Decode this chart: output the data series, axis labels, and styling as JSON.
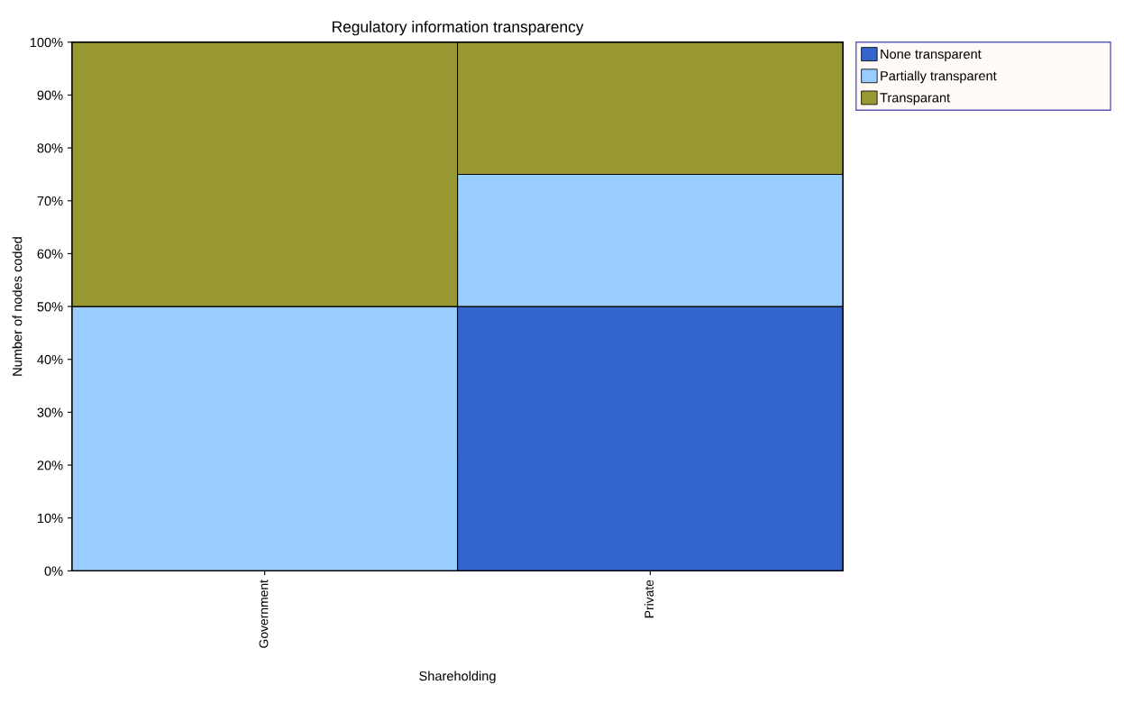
{
  "chart_data": {
    "type": "bar",
    "stacked": true,
    "title": "Regulatory information transparency",
    "xlabel": "Shareholding",
    "ylabel": "Number of nodes coded",
    "categories": [
      "Government",
      "Private"
    ],
    "series": [
      {
        "name": "None transparent",
        "color": "#3366cc",
        "values": [
          0,
          50
        ]
      },
      {
        "name": "Partially transparent",
        "color": "#99ccff",
        "values": [
          50,
          25
        ]
      },
      {
        "name": "Transparant",
        "color": "#999933",
        "values": [
          50,
          25
        ]
      }
    ],
    "ylim": [
      0,
      100
    ],
    "yticks": [
      {
        "value": 0,
        "label": "0%"
      },
      {
        "value": 10,
        "label": "10%"
      },
      {
        "value": 20,
        "label": "20%"
      },
      {
        "value": 30,
        "label": "30%"
      },
      {
        "value": 40,
        "label": "40%"
      },
      {
        "value": 50,
        "label": "50%"
      },
      {
        "value": 60,
        "label": "60%"
      },
      {
        "value": 70,
        "label": "70%"
      },
      {
        "value": 80,
        "label": "80%"
      },
      {
        "value": 90,
        "label": "90%"
      },
      {
        "value": 100,
        "label": "100%"
      }
    ],
    "legend": "right"
  }
}
